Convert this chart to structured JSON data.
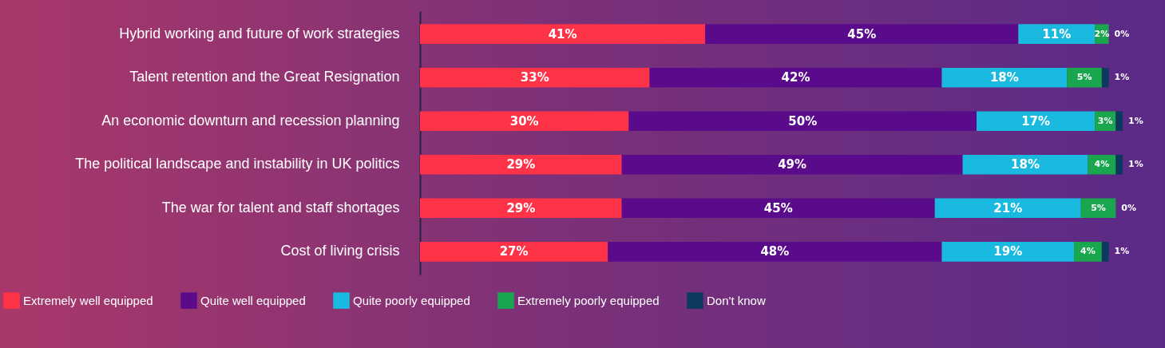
{
  "chart_data": {
    "type": "bar",
    "orientation": "horizontal",
    "stacked": true,
    "legend": "bottom",
    "categories": [
      "Hybrid working and future of work strategies",
      "Talent retention and the Great Resignation",
      "An economic downturn and recession planning",
      "The political landscape and instability in UK politics",
      "The war for talent and staff shortages",
      "Cost of living crisis"
    ],
    "series": [
      {
        "name": "Extremely well equipped",
        "color": "#ff3347",
        "values": [
          41,
          33,
          30,
          29,
          29,
          27
        ],
        "value_labels": [
          "41%",
          "33%",
          "30%",
          "29%",
          "29%",
          "27%"
        ]
      },
      {
        "name": "Quite well equipped",
        "color": "#5a0b8c",
        "values": [
          45,
          42,
          50,
          49,
          45,
          48
        ],
        "value_labels": [
          "45%",
          "42%",
          "50%",
          "49%",
          "45%",
          "48%"
        ]
      },
      {
        "name": "Quite poorly equipped",
        "color": "#19b9e0",
        "values": [
          11,
          18,
          17,
          18,
          21,
          19
        ],
        "value_labels": [
          "11%",
          "18%",
          "17%",
          "18%",
          "21%",
          "19%"
        ]
      },
      {
        "name": "Extremely poorly equipped",
        "color": "#1aa64f",
        "values": [
          2,
          5,
          3,
          4,
          5,
          4
        ],
        "value_labels": [
          "2%",
          "5%",
          "3%",
          "4%",
          "5%",
          "4%"
        ]
      },
      {
        "name": "Don't know",
        "color": "#0c3a5e",
        "values": [
          0,
          1,
          1,
          1,
          0,
          1
        ],
        "value_labels": [
          "0%",
          "1%",
          "1%",
          "1%",
          "0%",
          "1%"
        ]
      }
    ]
  }
}
